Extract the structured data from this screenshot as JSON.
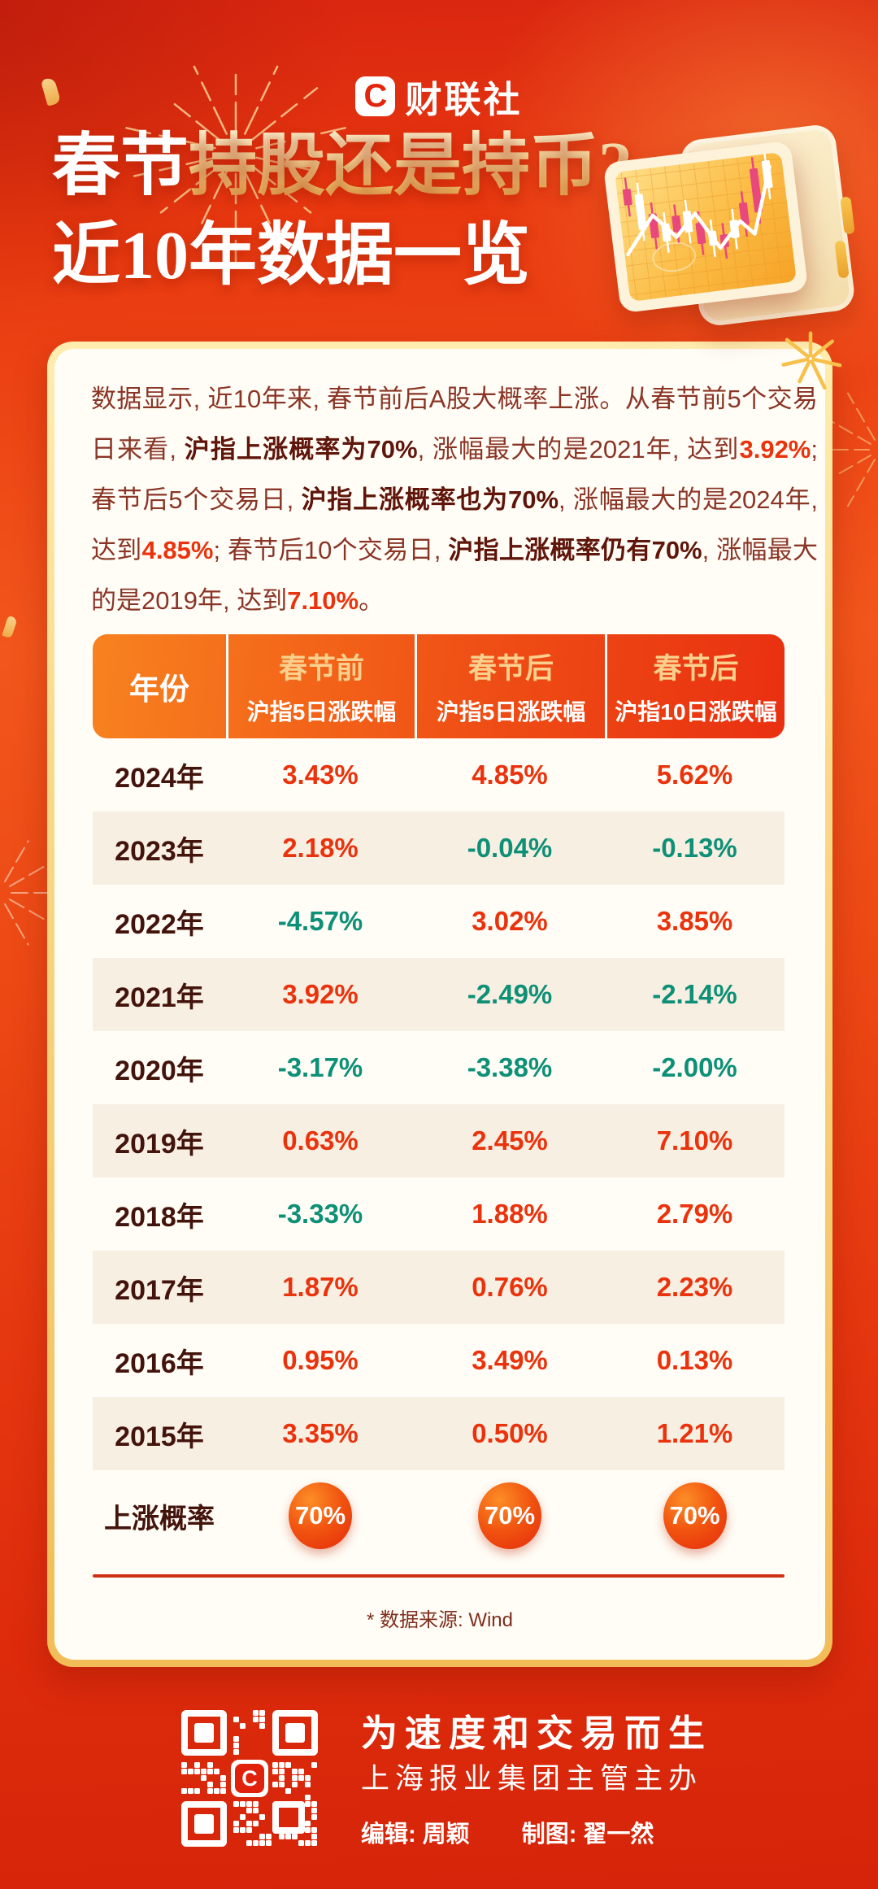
{
  "colors": {
    "positive_value": "#ea330d",
    "negative_value": "#0e9077",
    "accent_gold": "#f6c95f",
    "header_gradient_left": "#f8821f",
    "header_gradient_right": "#e93011",
    "card_background": "#fffdf6",
    "poster_background": "#e8420f"
  },
  "logo": {
    "icon_letter": "C",
    "brand": "财联社"
  },
  "title": {
    "prefix": "春节",
    "highlight": "持股还是持币?",
    "line2": "近10年数据一览"
  },
  "intro": {
    "segments": [
      {
        "text": "数据显示, 近10年来, 春节前后A股大概率上涨。从春节前5个交易日来看, ",
        "style": "normal"
      },
      {
        "text": "沪指上涨概率为70%",
        "style": "bold"
      },
      {
        "text": ", 涨幅最大的是2021年, 达到",
        "style": "normal"
      },
      {
        "text": "3.92%",
        "style": "red"
      },
      {
        "text": "; 春节后5个交易日, ",
        "style": "normal"
      },
      {
        "text": "沪指上涨概率也为70%",
        "style": "bold"
      },
      {
        "text": ", 涨幅最大的是2024年, 达到",
        "style": "normal"
      },
      {
        "text": "4.85%",
        "style": "red"
      },
      {
        "text": "; 春节后10个交易日, ",
        "style": "normal"
      },
      {
        "text": "沪指上涨概率仍有70%",
        "style": "bold"
      },
      {
        "text": ", 涨幅最大的是2019年, 达到",
        "style": "normal"
      },
      {
        "text": "7.10%",
        "style": "red"
      },
      {
        "text": "。",
        "style": "normal"
      }
    ]
  },
  "table": {
    "header": [
      {
        "line1": "年份",
        "line2": ""
      },
      {
        "line1": "春节前",
        "line2": "沪指5日涨跌幅"
      },
      {
        "line1": "春节后",
        "line2": "沪指5日涨跌幅"
      },
      {
        "line1": "春节后",
        "line2": "沪指10日涨跌幅"
      }
    ],
    "rows": [
      {
        "year": "2024年",
        "cells": [
          {
            "value": "3.43%",
            "trend": "red"
          },
          {
            "value": "4.85%",
            "trend": "red"
          },
          {
            "value": "5.62%",
            "trend": "red"
          }
        ]
      },
      {
        "year": "2023年",
        "cells": [
          {
            "value": "2.18%",
            "trend": "red"
          },
          {
            "value": "-0.04%",
            "trend": "green"
          },
          {
            "value": "-0.13%",
            "trend": "green"
          }
        ]
      },
      {
        "year": "2022年",
        "cells": [
          {
            "value": "-4.57%",
            "trend": "green"
          },
          {
            "value": "3.02%",
            "trend": "red"
          },
          {
            "value": "3.85%",
            "trend": "red"
          }
        ]
      },
      {
        "year": "2021年",
        "cells": [
          {
            "value": "3.92%",
            "trend": "red"
          },
          {
            "value": "-2.49%",
            "trend": "green"
          },
          {
            "value": "-2.14%",
            "trend": "green"
          }
        ]
      },
      {
        "year": "2020年",
        "cells": [
          {
            "value": "-3.17%",
            "trend": "green"
          },
          {
            "value": "-3.38%",
            "trend": "green"
          },
          {
            "value": "-2.00%",
            "trend": "green"
          }
        ]
      },
      {
        "year": "2019年",
        "cells": [
          {
            "value": "0.63%",
            "trend": "red"
          },
          {
            "value": "2.45%",
            "trend": "red"
          },
          {
            "value": "7.10%",
            "trend": "red"
          }
        ]
      },
      {
        "year": "2018年",
        "cells": [
          {
            "value": "-3.33%",
            "trend": "green"
          },
          {
            "value": "1.88%",
            "trend": "red"
          },
          {
            "value": "2.79%",
            "trend": "red"
          }
        ]
      },
      {
        "year": "2017年",
        "cells": [
          {
            "value": "1.87%",
            "trend": "red"
          },
          {
            "value": "0.76%",
            "trend": "red"
          },
          {
            "value": "2.23%",
            "trend": "red"
          }
        ]
      },
      {
        "year": "2016年",
        "cells": [
          {
            "value": "0.95%",
            "trend": "red"
          },
          {
            "value": "3.49%",
            "trend": "red"
          },
          {
            "value": "0.13%",
            "trend": "red"
          }
        ]
      },
      {
        "year": "2015年",
        "cells": [
          {
            "value": "3.35%",
            "trend": "red"
          },
          {
            "value": "0.50%",
            "trend": "red"
          },
          {
            "value": "1.21%",
            "trend": "red"
          }
        ]
      }
    ],
    "probability": {
      "label": "上涨概率",
      "badges": [
        "70%",
        "70%",
        "70%"
      ]
    }
  },
  "source_note": "* 数据来源: Wind",
  "footer": {
    "slogan": "为速度和交易而生",
    "organizer": "上海报业集团主管主办",
    "editor": "编辑: 周颖",
    "designer": "制图: 翟一然"
  },
  "chart_data": {
    "type": "table",
    "title": "春节持股还是持币? 近10年数据一览",
    "columns": [
      "年份",
      "春节前沪指5日涨跌幅(%)",
      "春节后沪指5日涨跌幅(%)",
      "春节后沪指10日涨跌幅(%)"
    ],
    "rows": [
      [
        "2024年",
        3.43,
        4.85,
        5.62
      ],
      [
        "2023年",
        2.18,
        -0.04,
        -0.13
      ],
      [
        "2022年",
        -4.57,
        3.02,
        3.85
      ],
      [
        "2021年",
        3.92,
        -2.49,
        -2.14
      ],
      [
        "2020年",
        -3.17,
        -3.38,
        -2.0
      ],
      [
        "2019年",
        0.63,
        2.45,
        7.1
      ],
      [
        "2018年",
        -3.33,
        1.88,
        2.79
      ],
      [
        "2017年",
        1.87,
        0.76,
        2.23
      ],
      [
        "2016年",
        0.95,
        3.49,
        0.13
      ],
      [
        "2015年",
        3.35,
        0.5,
        1.21
      ]
    ],
    "win_rate_row": [
      "上涨概率",
      "70%",
      "70%",
      "70%"
    ],
    "source": "Wind"
  }
}
